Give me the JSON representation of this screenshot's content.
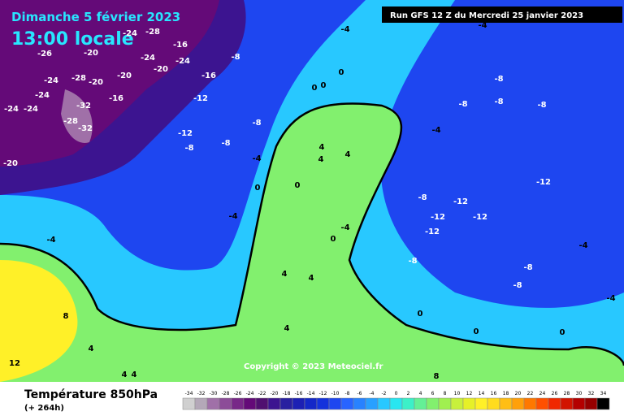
{
  "header": {
    "date": "Dimanche 5 février 2023",
    "time": "13:00 locale",
    "run": "Run GFS 12 Z du Mercredi 25 janvier 2023"
  },
  "copyright": "Copyright © 2023 Meteociel.fr",
  "footer": {
    "title": "Température 850hPa",
    "lead": "(+ 264h)"
  },
  "scale": {
    "values": [
      -34,
      -32,
      -30,
      -28,
      -26,
      -24,
      -22,
      -20,
      -18,
      -16,
      -14,
      -12,
      -10,
      -8,
      -6,
      -4,
      -2,
      0,
      2,
      4,
      6,
      8,
      10,
      12,
      14,
      16,
      18,
      20,
      22,
      24,
      26,
      28,
      30,
      32,
      34
    ],
    "colors": [
      "#d0d0d0",
      "#b4a8b8",
      "#a070a8",
      "#8c4c98",
      "#782888",
      "#640a78",
      "#501070",
      "#3c1490",
      "#2820a0",
      "#1c20b4",
      "#1428c8",
      "#1432dc",
      "#1e46f0",
      "#2864ff",
      "#2882ff",
      "#28a0ff",
      "#28c8ff",
      "#28e6f0",
      "#3cf0c8",
      "#64f096",
      "#82f06e",
      "#a0f050",
      "#c8f03c",
      "#e6f028",
      "#fff028",
      "#ffdc1e",
      "#ffbe14",
      "#ffa00a",
      "#ff7800",
      "#ff5000",
      "#f02800",
      "#d21400",
      "#b40000",
      "#960000",
      "#000000"
    ]
  },
  "map_labels": [
    "-24",
    "-28",
    "-16",
    "-20",
    "-26",
    "-24",
    "-24",
    "-8",
    "-20",
    "-20",
    "-24",
    "-28",
    "-20",
    "-16",
    "-24",
    "-24",
    "-24",
    "-16",
    "-12",
    "-32",
    "-28",
    "-32",
    "-12",
    "-8",
    "-8",
    "-8",
    "-20",
    "-4",
    "-4",
    "-4",
    "0",
    "0",
    "0",
    "-8",
    "-8",
    "-8",
    "-8",
    "-4",
    "4",
    "4",
    "4",
    "0",
    "0",
    "-12",
    "-8",
    "-12",
    "-12",
    "-12",
    "-12",
    "-4",
    "0",
    "-4",
    "-4",
    "4",
    "4",
    "8",
    "4",
    "-8",
    "-8",
    "-8",
    "0",
    "0",
    "0",
    "4",
    "12",
    "4",
    "4",
    "8",
    "-4",
    "-4"
  ]
}
